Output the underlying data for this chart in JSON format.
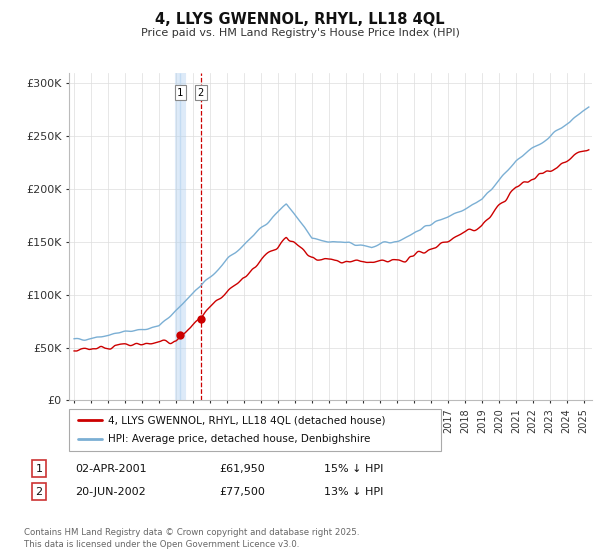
{
  "title": "4, LLYS GWENNOL, RHYL, LL18 4QL",
  "subtitle": "Price paid vs. HM Land Registry's House Price Index (HPI)",
  "ylabel_ticks": [
    "£0",
    "£50K",
    "£100K",
    "£150K",
    "£200K",
    "£250K",
    "£300K"
  ],
  "ytick_values": [
    0,
    50000,
    100000,
    150000,
    200000,
    250000,
    300000
  ],
  "ylim": [
    0,
    310000
  ],
  "xlim_start": 1994.7,
  "xlim_end": 2025.5,
  "sale1_date": 2001.25,
  "sale1_price": 61950,
  "sale2_date": 2002.46,
  "sale2_price": 77500,
  "legend_line1": "4, LLYS GWENNOL, RHYL, LL18 4QL (detached house)",
  "legend_line2": "HPI: Average price, detached house, Denbighshire",
  "table_row1": [
    "1",
    "02-APR-2001",
    "£61,950",
    "15% ↓ HPI"
  ],
  "table_row2": [
    "2",
    "20-JUN-2002",
    "£77,500",
    "13% ↓ HPI"
  ],
  "footer": "Contains HM Land Registry data © Crown copyright and database right 2025.\nThis data is licensed under the Open Government Licence v3.0.",
  "color_red": "#cc0000",
  "color_blue": "#7bafd4",
  "color_dashed": "#cc0000",
  "grid_color": "#dddddd",
  "sale1_vline_color": "#aaccee",
  "sale1_vline_alpha": 0.6
}
